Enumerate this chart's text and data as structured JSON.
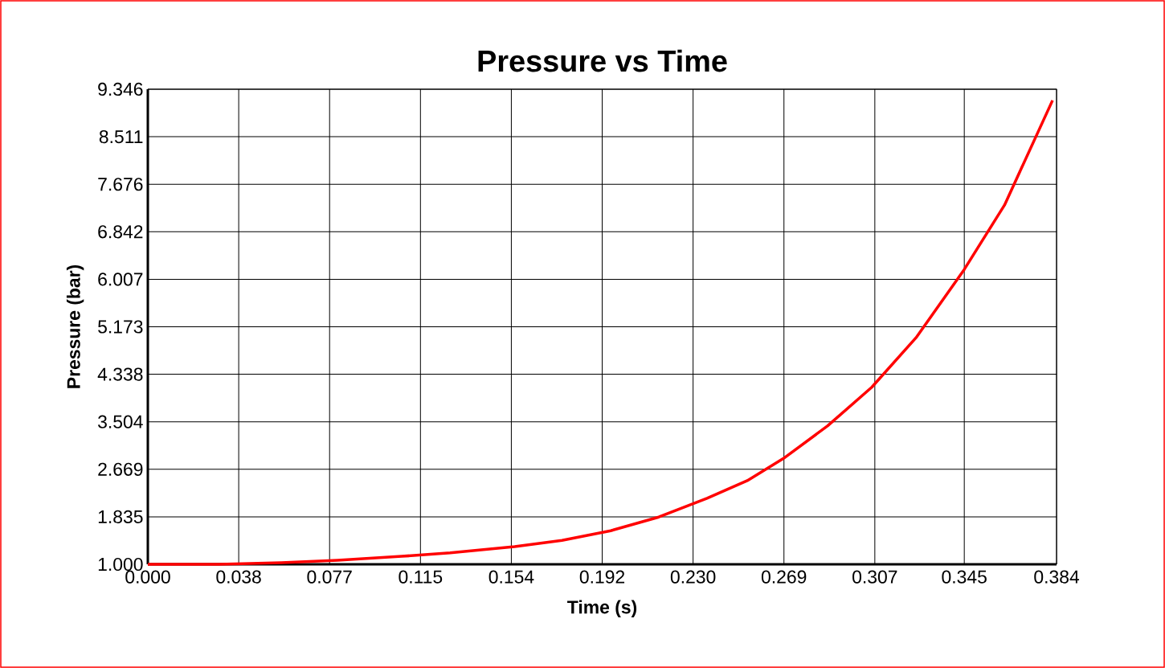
{
  "chart_data": {
    "type": "line",
    "title": "Pressure vs Time",
    "xlabel": "Time (s)",
    "ylabel": "Pressure (bar)",
    "x": [
      0,
      0.03,
      0.0564,
      0.0801,
      0.1073,
      0.1277,
      0.155,
      0.175,
      0.1956,
      0.2159,
      0.2363,
      0.2533,
      0.2686,
      0.2872,
      0.3059,
      0.3246,
      0.345,
      0.362,
      0.3823
    ],
    "series": [
      {
        "color": "#ff0000",
        "values": [
          1.0,
          1.0,
          1.03,
          1.07,
          1.14,
          1.2,
          1.31,
          1.42,
          1.59,
          1.83,
          2.16,
          2.47,
          2.86,
          3.43,
          4.11,
          4.98,
          6.18,
          7.31,
          9.15
        ]
      }
    ],
    "xlim": [
      0,
      0.384
    ],
    "ylim": [
      1.0,
      9.346
    ],
    "xticks": [
      {
        "value": 0,
        "label": "0.000"
      },
      {
        "value": 0.0384,
        "label": "0.038"
      },
      {
        "value": 0.0768,
        "label": "0.077"
      },
      {
        "value": 0.1152,
        "label": "0.115"
      },
      {
        "value": 0.1536,
        "label": "0.154"
      },
      {
        "value": 0.192,
        "label": "0.192"
      },
      {
        "value": 0.2304,
        "label": "0.230"
      },
      {
        "value": 0.2688,
        "label": "0.269"
      },
      {
        "value": 0.3072,
        "label": "0.307"
      },
      {
        "value": 0.345,
        "label": "0.345"
      },
      {
        "value": 0.384,
        "label": "0.384"
      }
    ],
    "yticks": [
      {
        "value": 1.0,
        "label": "1.000"
      },
      {
        "value": 1.8346,
        "label": "1.835"
      },
      {
        "value": 2.6692,
        "label": "2.669"
      },
      {
        "value": 3.5038,
        "label": "3.504"
      },
      {
        "value": 4.3384,
        "label": "4.338"
      },
      {
        "value": 5.173,
        "label": "5.173"
      },
      {
        "value": 6.007,
        "label": "6.007"
      },
      {
        "value": 6.8422,
        "label": "6.842"
      },
      {
        "value": 7.676,
        "label": "7.676"
      },
      {
        "value": 8.5114,
        "label": "8.511"
      },
      {
        "value": 9.346,
        "label": "9.346"
      }
    ],
    "grid": true,
    "legend": false,
    "marker": "none",
    "line_style": "solid"
  }
}
